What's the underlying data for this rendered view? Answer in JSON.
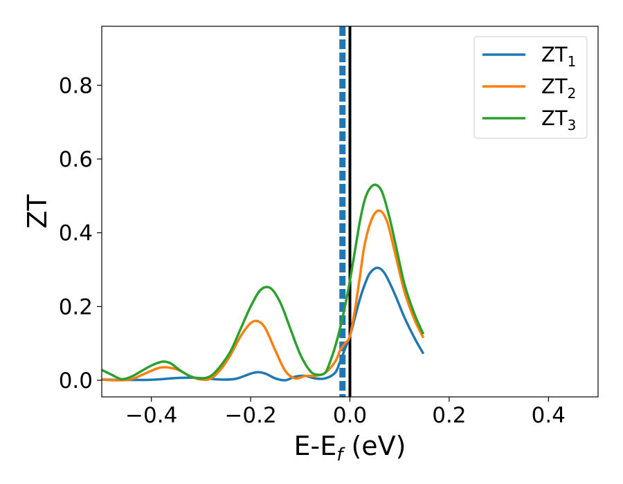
{
  "chart_data": {
    "type": "line",
    "title": "",
    "xlabel": "E-E",
    "xlabel_sub": "f",
    "xlabel_suffix": " (eV)",
    "ylabel": "ZT",
    "xlim": [
      -0.5,
      0.5
    ],
    "ylim": [
      -0.045,
      0.96
    ],
    "xticks": [
      -0.4,
      -0.2,
      0.0,
      0.2,
      0.4
    ],
    "xtick_labels": [
      "−0.4",
      "−0.2",
      "0.0",
      "0.2",
      "0.4"
    ],
    "yticks": [
      0.0,
      0.2,
      0.4,
      0.6,
      0.8
    ],
    "ytick_labels": [
      "0.0",
      "0.2",
      "0.4",
      "0.6",
      "0.8"
    ],
    "grid": false,
    "legend_position": "top-right",
    "vlines": [
      {
        "x": -0.015,
        "style": "dashed",
        "color": "#1f77b4"
      },
      {
        "x": 0.0,
        "style": "solid",
        "color": "#000000"
      }
    ],
    "series": [
      {
        "name": "ZT",
        "name_sub": "1",
        "color": "#1f77b4",
        "x": [
          -0.5,
          -0.47,
          -0.44,
          -0.41,
          -0.38,
          -0.35,
          -0.32,
          -0.29,
          -0.26,
          -0.23,
          -0.2,
          -0.185,
          -0.17,
          -0.15,
          -0.13,
          -0.11,
          -0.09,
          -0.07,
          -0.05,
          -0.03,
          -0.02,
          -0.01,
          0.0,
          0.01,
          0.02,
          0.03,
          0.04,
          0.055,
          0.07,
          0.09,
          0.11,
          0.13,
          0.148
        ],
        "y": [
          0.002,
          0.001,
          0.001,
          0.001,
          0.003,
          0.006,
          0.007,
          0.005,
          0.002,
          0.004,
          0.018,
          0.022,
          0.018,
          0.005,
          0.0,
          0.01,
          0.012,
          0.005,
          0.005,
          0.02,
          0.05,
          0.085,
          0.12,
          0.17,
          0.22,
          0.26,
          0.29,
          0.305,
          0.29,
          0.235,
          0.17,
          0.115,
          0.072
        ]
      },
      {
        "name": "ZT",
        "name_sub": "2",
        "color": "#ff7f0e",
        "x": [
          -0.5,
          -0.47,
          -0.44,
          -0.41,
          -0.38,
          -0.35,
          -0.32,
          -0.3,
          -0.28,
          -0.26,
          -0.24,
          -0.22,
          -0.2,
          -0.185,
          -0.17,
          -0.15,
          -0.13,
          -0.11,
          -0.09,
          -0.07,
          -0.05,
          -0.03,
          -0.02,
          -0.01,
          0.0,
          0.01,
          0.02,
          0.03,
          0.045,
          0.06,
          0.075,
          0.09,
          0.11,
          0.13,
          0.148
        ],
        "y": [
          0.002,
          0.0,
          0.003,
          0.02,
          0.035,
          0.03,
          0.01,
          0.002,
          0.005,
          0.03,
          0.07,
          0.12,
          0.155,
          0.16,
          0.14,
          0.08,
          0.025,
          0.005,
          0.012,
          0.012,
          0.02,
          0.05,
          0.08,
          0.1,
          0.12,
          0.19,
          0.28,
          0.37,
          0.44,
          0.46,
          0.43,
          0.35,
          0.24,
          0.165,
          0.115
        ]
      },
      {
        "name": "ZT",
        "name_sub": "3",
        "color": "#2ca02c",
        "x": [
          -0.5,
          -0.48,
          -0.46,
          -0.44,
          -0.42,
          -0.4,
          -0.38,
          -0.37,
          -0.36,
          -0.34,
          -0.32,
          -0.3,
          -0.28,
          -0.26,
          -0.24,
          -0.22,
          -0.2,
          -0.18,
          -0.16,
          -0.14,
          -0.12,
          -0.1,
          -0.08,
          -0.065,
          -0.05,
          -0.04,
          -0.03,
          -0.02,
          -0.01,
          0.0,
          0.01,
          0.02,
          0.03,
          0.04,
          0.052,
          0.065,
          0.08,
          0.095,
          0.11,
          0.13,
          0.148
        ],
        "y": [
          0.028,
          0.015,
          0.003,
          0.01,
          0.025,
          0.04,
          0.05,
          0.05,
          0.045,
          0.025,
          0.01,
          0.005,
          0.012,
          0.04,
          0.08,
          0.14,
          0.2,
          0.245,
          0.25,
          0.21,
          0.14,
          0.07,
          0.025,
          0.015,
          0.02,
          0.05,
          0.09,
          0.14,
          0.2,
          0.27,
          0.35,
          0.43,
          0.49,
          0.52,
          0.53,
          0.51,
          0.44,
          0.35,
          0.26,
          0.18,
          0.125
        ]
      }
    ]
  }
}
